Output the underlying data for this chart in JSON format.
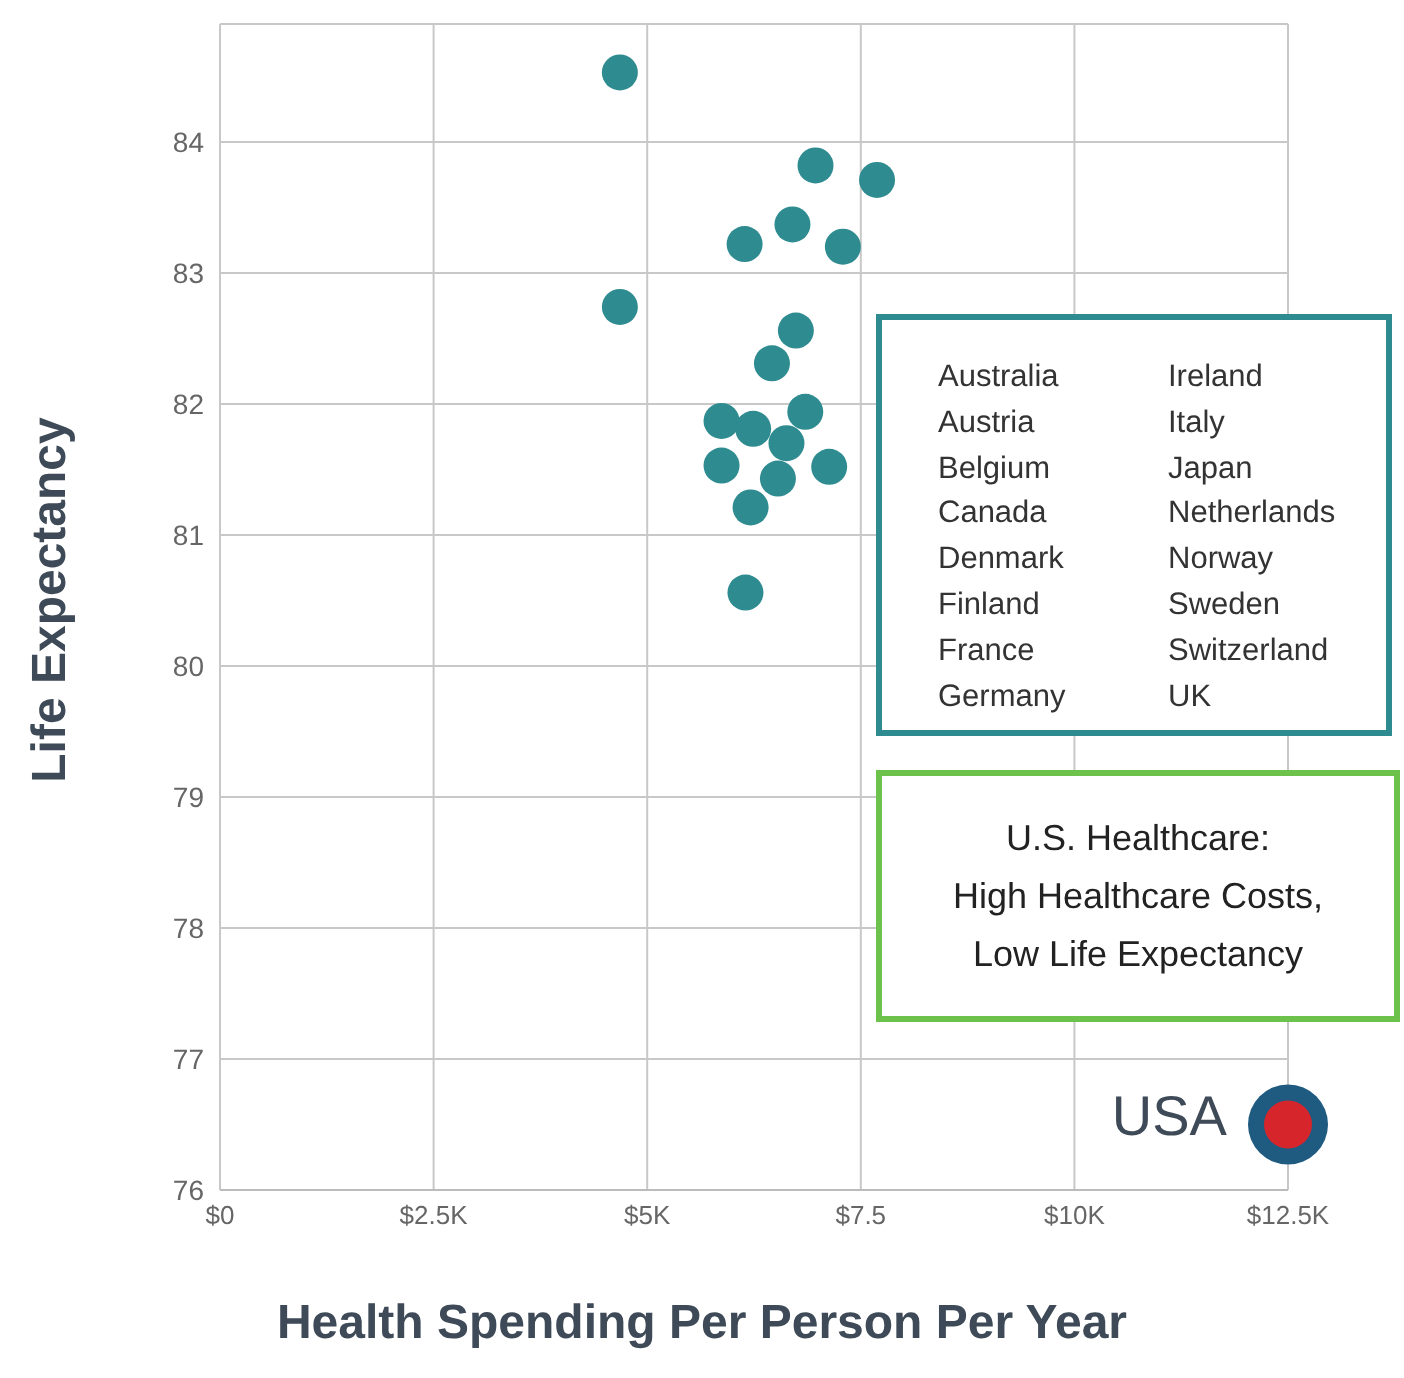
{
  "chart_data": {
    "type": "scatter",
    "xlabel": "Health Spending Per Person Per Year",
    "ylabel": "Life Expectancy",
    "xlim": [
      0,
      12.5
    ],
    "ylim": [
      76,
      84.9
    ],
    "xticks": [
      {
        "value": 0,
        "label": "$0"
      },
      {
        "value": 2.5,
        "label": "$2.5K"
      },
      {
        "value": 5,
        "label": "$5K"
      },
      {
        "value": 7.5,
        "label": "$7.5"
      },
      {
        "value": 10,
        "label": "$10K"
      },
      {
        "value": 12.5,
        "label": "$12.5K"
      }
    ],
    "yticks": [
      76,
      77,
      78,
      79,
      80,
      81,
      82,
      83,
      84
    ],
    "grid": true,
    "marker": "circle",
    "series": [
      {
        "color": "#2e8b90",
        "x": [
          4.68,
          6.97,
          7.69,
          6.7,
          6.14,
          7.29,
          4.68,
          6.74,
          6.46,
          5.87,
          6.24,
          6.85,
          6.63,
          5.87,
          6.53,
          7.13,
          6.21,
          6.15
        ],
        "values": [
          84.53,
          83.82,
          83.71,
          83.37,
          83.22,
          83.2,
          82.74,
          82.56,
          82.31,
          81.87,
          81.81,
          81.94,
          81.7,
          81.53,
          81.43,
          81.52,
          81.21,
          80.56
        ]
      },
      {
        "name": "USA",
        "color": "#d7262b",
        "x": [
          12.5
        ],
        "values": [
          76.5
        ]
      }
    ],
    "annotations": [
      "Australia",
      "Austria",
      "Belgium",
      "Canada",
      "Denmark",
      "Finland",
      "France",
      "Germany",
      "Ireland",
      "Italy",
      "Japan",
      "Netherlands",
      "Norway",
      "Sweden",
      "Switzerland",
      "UK",
      "U.S. Healthcare:\nHigh Healthcare Costs,\nLow Life Expectancy"
    ]
  }
}
